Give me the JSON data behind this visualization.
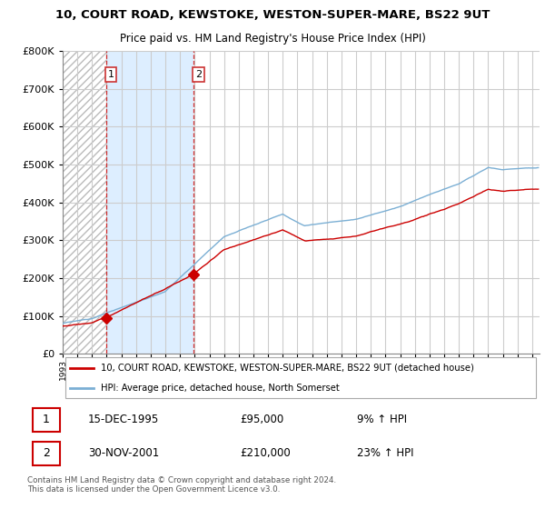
{
  "title": "10, COURT ROAD, KEWSTOKE, WESTON-SUPER-MARE, BS22 9UT",
  "subtitle": "Price paid vs. HM Land Registry's House Price Index (HPI)",
  "legend_line1": "10, COURT ROAD, KEWSTOKE, WESTON-SUPER-MARE, BS22 9UT (detached house)",
  "legend_line2": "HPI: Average price, detached house, North Somerset",
  "transaction1_date": "15-DEC-1995",
  "transaction1_price": "£95,000",
  "transaction1_hpi": "9% ↑ HPI",
  "transaction2_date": "30-NOV-2001",
  "transaction2_price": "£210,000",
  "transaction2_hpi": "23% ↑ HPI",
  "footer": "Contains HM Land Registry data © Crown copyright and database right 2024.\nThis data is licensed under the Open Government Licence v3.0.",
  "price_color": "#cc0000",
  "hpi_color": "#7bafd4",
  "ylim": [
    0,
    800000
  ],
  "yticks": [
    0,
    100000,
    200000,
    300000,
    400000,
    500000,
    600000,
    700000,
    800000
  ],
  "t1_year": 1995.958,
  "t2_year": 2001.917,
  "t1_price": 95000,
  "t2_price": 210000
}
